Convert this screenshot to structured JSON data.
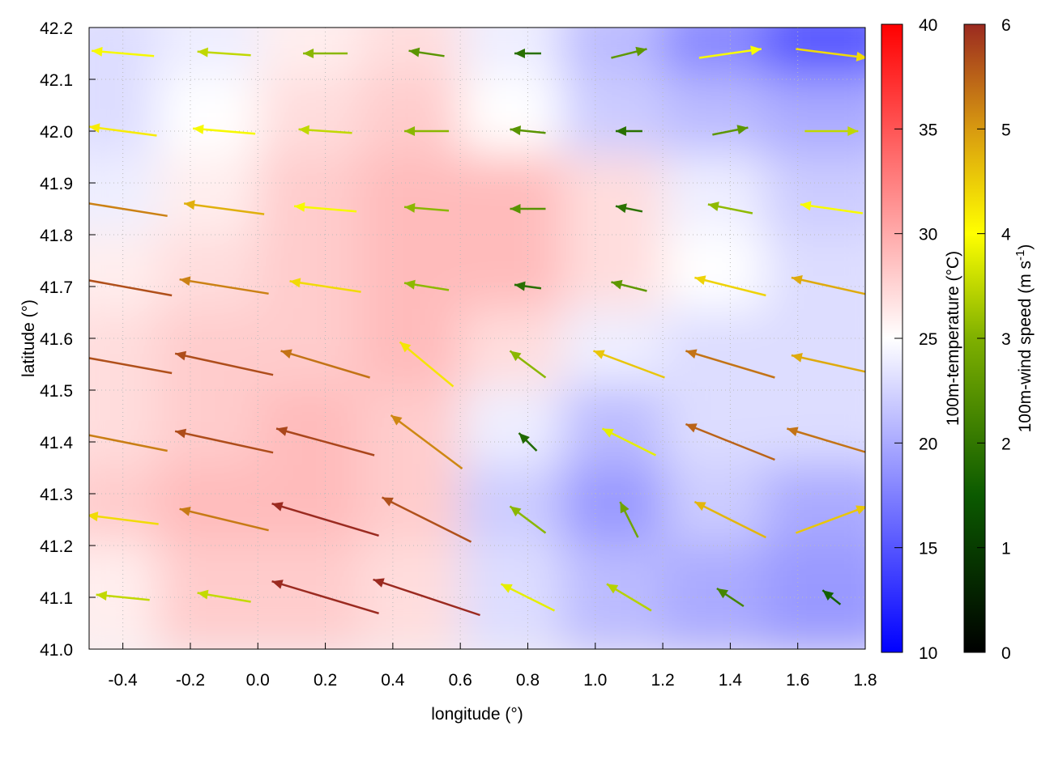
{
  "chart_data": {
    "type": "vector-field-heatmap",
    "xlabel": "longitude (°)",
    "ylabel": "latitude (°)",
    "xlim": [
      -0.5,
      1.8
    ],
    "ylim": [
      41.0,
      42.2
    ],
    "xticks": [
      "-0.4",
      "-0.2",
      "0.0",
      "0.2",
      "0.4",
      "0.6",
      "0.8",
      "1.0",
      "1.2",
      "1.4",
      "1.6",
      "1.8"
    ],
    "xtick_values": [
      -0.4,
      -0.2,
      0.0,
      0.2,
      0.4,
      0.6,
      0.8,
      1.0,
      1.2,
      1.4,
      1.6,
      1.8
    ],
    "yticks": [
      "41.0",
      "41.1",
      "41.2",
      "41.3",
      "41.4",
      "41.5",
      "41.6",
      "41.7",
      "41.8",
      "41.9",
      "42.0",
      "42.1",
      "42.2"
    ],
    "ytick_values": [
      41.0,
      41.1,
      41.2,
      41.3,
      41.4,
      41.5,
      41.6,
      41.7,
      41.8,
      41.9,
      42.0,
      42.1,
      42.2
    ],
    "grid": true,
    "temperature_colorbar": {
      "label": "100m-temperature (°C)",
      "range": [
        10,
        40
      ],
      "ticks": [
        "10",
        "15",
        "20",
        "25",
        "30",
        "35",
        "40"
      ],
      "tick_values": [
        10,
        15,
        20,
        25,
        30,
        35,
        40
      ],
      "colors": [
        "#0000ff",
        "#ffffff",
        "#ff0000"
      ]
    },
    "wind_colorbar": {
      "label": "100m-wind speed (m s",
      "label_sup": "-1",
      "label_end": ")",
      "range": [
        0,
        6
      ],
      "ticks": [
        "0",
        "1",
        "2",
        "3",
        "4",
        "5",
        "6"
      ],
      "tick_values": [
        0,
        1,
        2,
        3,
        4,
        5,
        6
      ],
      "colors": [
        "#000000",
        "#0b5a00",
        "#7fb000",
        "#ffff00",
        "#d89a10",
        "#9b2a20"
      ]
    },
    "temperature_grid": {
      "lon": [
        -0.4,
        -0.1,
        0.2,
        0.5,
        0.8,
        1.1,
        1.4,
        1.7
      ],
      "lat": [
        42.15,
        42.0,
        41.85,
        41.7,
        41.55,
        41.4,
        41.25,
        41.1
      ],
      "values": [
        [
          23,
          24,
          26,
          27,
          24,
          21,
          18,
          15
        ],
        [
          23,
          25,
          27,
          28,
          25,
          22,
          21,
          20
        ],
        [
          24,
          26,
          28,
          29,
          29,
          27,
          24,
          22
        ],
        [
          26,
          27,
          28,
          29,
          29,
          27,
          25,
          23
        ],
        [
          27,
          28,
          28,
          29,
          27,
          24,
          23,
          23
        ],
        [
          27,
          28,
          29,
          28,
          24,
          21,
          23,
          23
        ],
        [
          28,
          29,
          29,
          28,
          22,
          19,
          22,
          20
        ],
        [
          26,
          28,
          28,
          27,
          23,
          21,
          20,
          19
        ]
      ]
    },
    "wind_vectors": {
      "lon": [
        -0.4,
        -0.1,
        0.2,
        0.5,
        0.8,
        1.1,
        1.4,
        1.7
      ],
      "lat": [
        42.15,
        42.0,
        41.85,
        41.7,
        41.55,
        41.4,
        41.25,
        41.1
      ],
      "uv": [
        [
          [
            -3.5,
            0.3
          ],
          [
            -3,
            0.2
          ],
          [
            -2.5,
            0
          ],
          [
            -2,
            0.3
          ],
          [
            -1.5,
            0
          ],
          [
            2,
            0.5
          ],
          [
            3.5,
            0.5
          ],
          [
            4,
            -0.5
          ]
        ],
        [
          [
            -3.8,
            0.5
          ],
          [
            -3.5,
            0.3
          ],
          [
            -3,
            0.2
          ],
          [
            -2.5,
            0
          ],
          [
            -2,
            0.2
          ],
          [
            -1.5,
            0
          ],
          [
            2,
            0.4
          ],
          [
            3,
            0
          ]
        ],
        [
          [
            -5,
            0.8
          ],
          [
            -4.5,
            0.6
          ],
          [
            -3.5,
            0.3
          ],
          [
            -2.5,
            0.2
          ],
          [
            -2,
            0
          ],
          [
            -1.5,
            0.3
          ],
          [
            -2.5,
            0.5
          ],
          [
            -3.5,
            0.5
          ]
        ],
        [
          [
            -5.5,
            1
          ],
          [
            -5,
            0.8
          ],
          [
            -4,
            0.6
          ],
          [
            -2.5,
            0.4
          ],
          [
            -1.5,
            0.2
          ],
          [
            -2,
            0.5
          ],
          [
            -4,
            1
          ],
          [
            -4.5,
            1
          ]
        ],
        [
          [
            -5.5,
            1
          ],
          [
            -5.5,
            1.2
          ],
          [
            -5,
            1.5
          ],
          [
            -3,
            2.5
          ],
          [
            -2,
            1.5
          ],
          [
            -4,
            1.5
          ],
          [
            -5,
            1.5
          ],
          [
            -4.5,
            1
          ]
        ],
        [
          [
            -5,
            1
          ],
          [
            -5.5,
            1.2
          ],
          [
            -5.5,
            1.5
          ],
          [
            -4,
            3
          ],
          [
            -1,
            1
          ],
          [
            -3,
            1.5
          ],
          [
            -5,
            2
          ],
          [
            -5,
            1.5
          ]
        ],
        [
          [
            -4,
            0.5
          ],
          [
            -5,
            1.2
          ],
          [
            -6,
            1.8
          ],
          [
            -5,
            2.5
          ],
          [
            -2,
            1.5
          ],
          [
            -1,
            2
          ],
          [
            -4,
            2
          ],
          [
            4,
            1.5
          ]
        ],
        [
          [
            -3,
            0.3
          ],
          [
            -3,
            0.5
          ],
          [
            -6,
            1.8
          ],
          [
            -6,
            2
          ],
          [
            -3,
            1.5
          ],
          [
            -2.5,
            1.5
          ],
          [
            -1.5,
            1
          ],
          [
            -1,
            0.8
          ]
        ]
      ]
    }
  }
}
